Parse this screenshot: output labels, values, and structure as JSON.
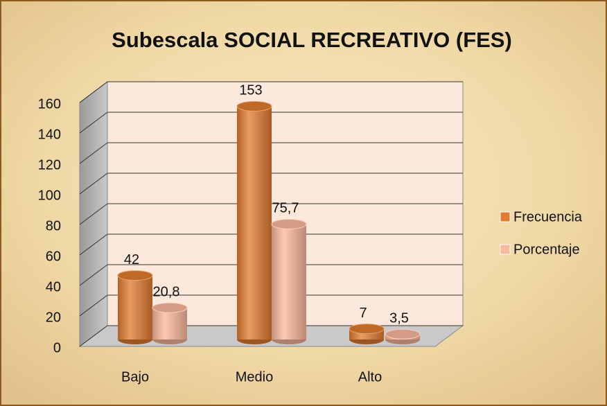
{
  "chart_data": {
    "type": "bar3d",
    "title": "Subescala  SOCIAL RECREATIVO  (FES)",
    "categories": [
      "Bajo",
      "Medio",
      "Alto"
    ],
    "series": [
      {
        "name": "Frecuencia",
        "color": "#e07b2f",
        "values": [
          42,
          153,
          7
        ]
      },
      {
        "name": "Porcentaje",
        "color": "#f9b79b",
        "values": [
          20.8,
          75.7,
          3.5
        ],
        "value_labels": [
          "20,8",
          "75,7",
          "3,5"
        ]
      }
    ],
    "ylim": [
      0,
      160
    ],
    "yticks": [
      0,
      20,
      40,
      60,
      80,
      100,
      120,
      140,
      160
    ],
    "grid": true,
    "legend": "right"
  }
}
